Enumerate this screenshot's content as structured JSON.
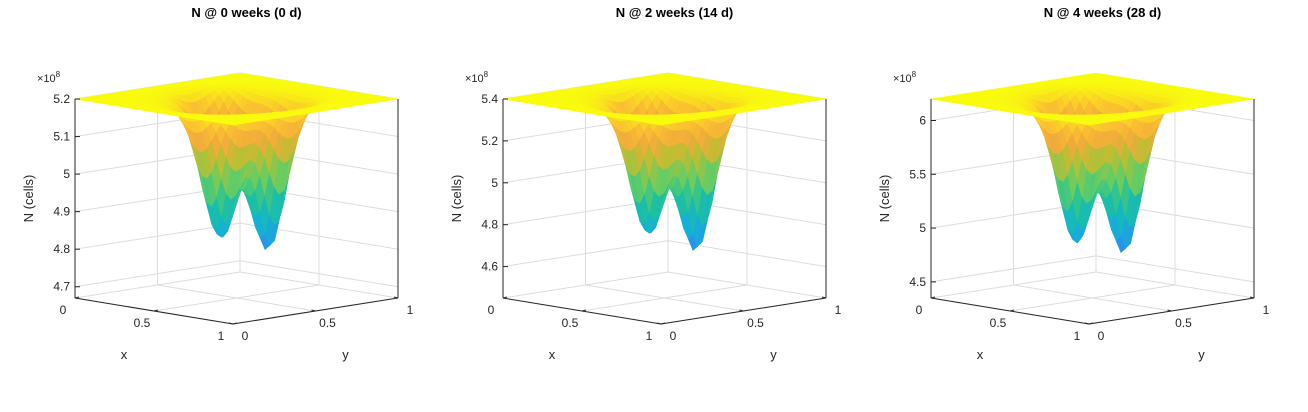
{
  "chart_data": [
    {
      "type": "surface",
      "title": "N @ 0 weeks (0 d)",
      "xlabel": "x",
      "ylabel": "y",
      "zlabel": "N (cells)",
      "z_multiplier": "×10^8",
      "xlim": [
        0,
        1
      ],
      "ylim": [
        0,
        1
      ],
      "zlim": [
        4.67,
        5.2
      ],
      "x_ticks": [
        "0",
        "0.5",
        "1"
      ],
      "y_ticks": [
        "0",
        "0.5",
        "1"
      ],
      "z_ticks": [
        "4.7",
        "4.8",
        "4.9",
        "5",
        "5.1",
        "5.2"
      ],
      "z_tick_values": [
        4.7,
        4.8,
        4.9,
        5.0,
        5.1,
        5.2
      ],
      "plateau": 5.2,
      "wells": [
        {
          "x": 0.35,
          "y": 0.55,
          "min": 4.71
        },
        {
          "x": 0.6,
          "y": 0.6,
          "min": 4.69
        },
        {
          "x": 0.55,
          "y": 0.35,
          "min": 4.75
        }
      ],
      "grid": true,
      "colormap": "parula"
    },
    {
      "type": "surface",
      "title": "N @ 2 weeks (14 d)",
      "xlabel": "x",
      "ylabel": "y",
      "zlabel": "N (cells)",
      "z_multiplier": "×10^8",
      "xlim": [
        0,
        1
      ],
      "ylim": [
        0,
        1
      ],
      "zlim": [
        4.45,
        5.4
      ],
      "x_ticks": [
        "0",
        "0.5",
        "1"
      ],
      "y_ticks": [
        "0",
        "0.5",
        "1"
      ],
      "z_ticks": [
        "4.6",
        "4.8",
        "5",
        "5.2",
        "5.4"
      ],
      "z_tick_values": [
        4.6,
        4.8,
        5.0,
        5.2,
        5.4
      ],
      "plateau": 5.4,
      "wells": [
        {
          "x": 0.35,
          "y": 0.55,
          "min": 4.55
        },
        {
          "x": 0.6,
          "y": 0.6,
          "min": 4.48
        },
        {
          "x": 0.55,
          "y": 0.35,
          "min": 4.62
        }
      ],
      "grid": true,
      "colormap": "parula"
    },
    {
      "type": "surface",
      "title": "N @ 4 weeks (28 d)",
      "xlabel": "x",
      "ylabel": "y",
      "zlabel": "N (cells)",
      "z_multiplier": "×10^8",
      "xlim": [
        0,
        1
      ],
      "ylim": [
        0,
        1
      ],
      "zlim": [
        4.35,
        6.2
      ],
      "x_ticks": [
        "0",
        "0.5",
        "1"
      ],
      "y_ticks": [
        "0",
        "0.5",
        "1"
      ],
      "z_ticks": [
        "4.5",
        "5",
        "5.5",
        "6"
      ],
      "z_tick_values": [
        4.5,
        5.0,
        5.5,
        6.0
      ],
      "plateau": 6.2,
      "wells": [
        {
          "x": 0.35,
          "y": 0.55,
          "min": 4.45
        },
        {
          "x": 0.6,
          "y": 0.6,
          "min": 4.38
        },
        {
          "x": 0.55,
          "y": 0.35,
          "min": 4.55
        }
      ],
      "grid": true,
      "colormap": "parula"
    }
  ]
}
